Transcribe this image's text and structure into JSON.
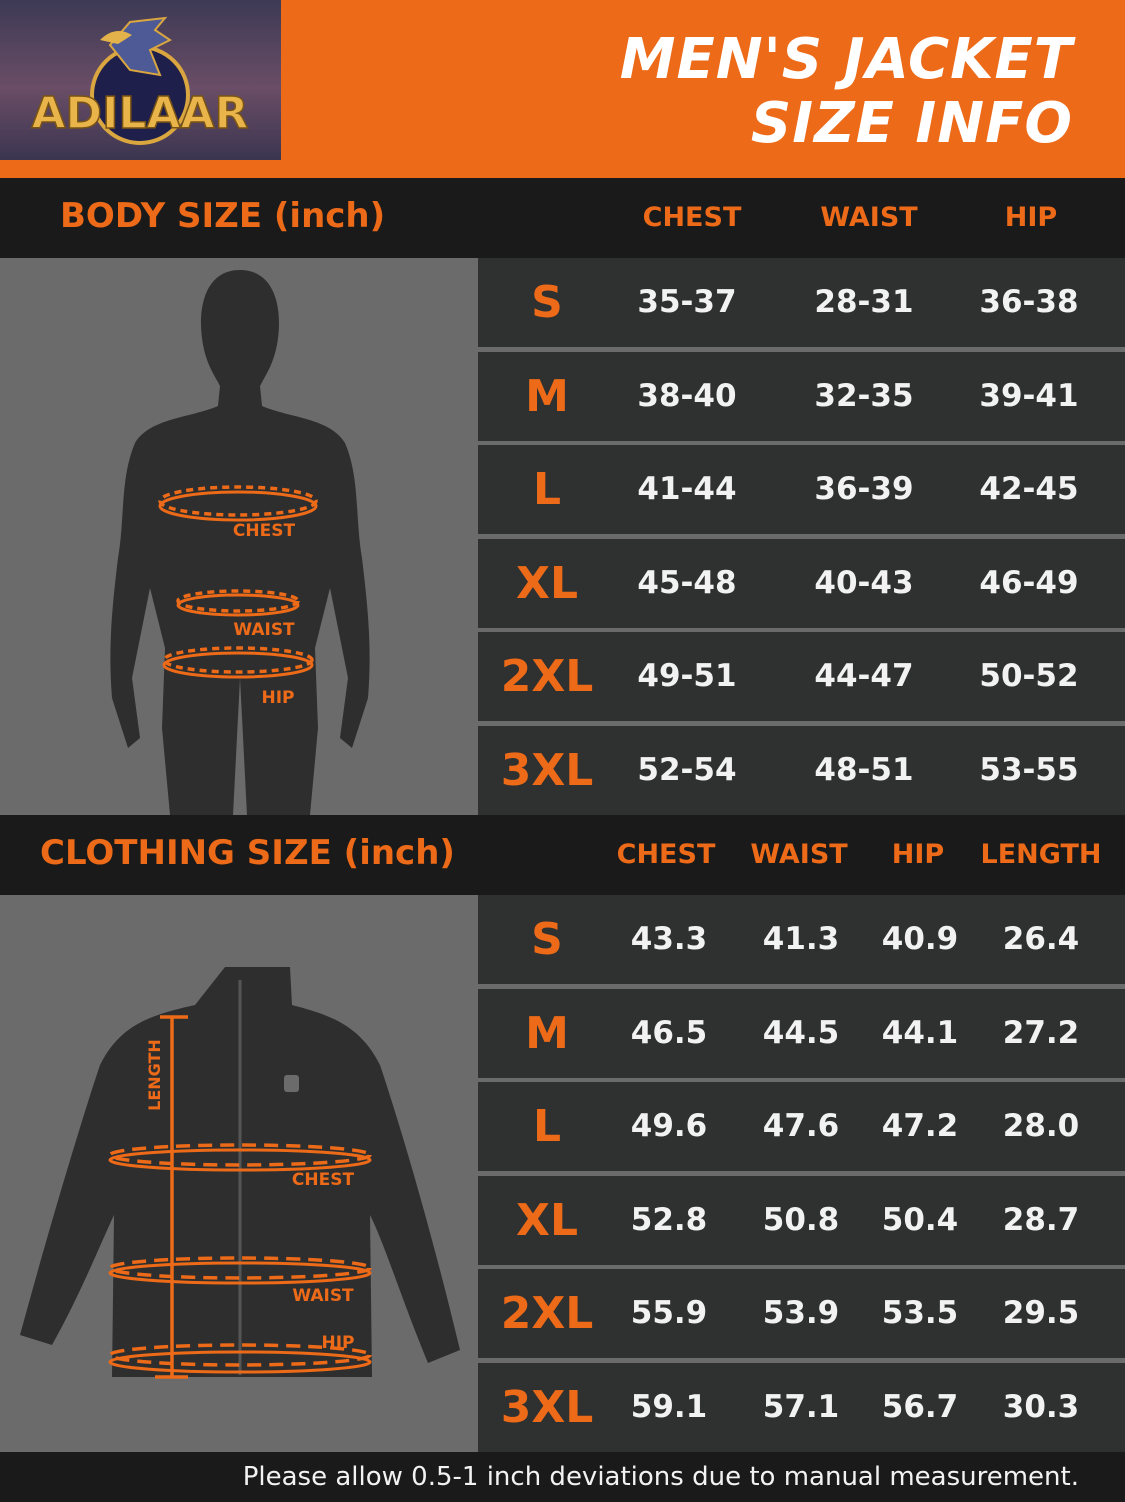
{
  "brand": {
    "logo_text": "ADILAAR"
  },
  "title": {
    "line1": "MEN'S JACKET",
    "line2": "SIZE INFO"
  },
  "colors": {
    "accent": "#ec6a18",
    "header_bg": "#1a1a1a",
    "row_bg": "#2f3030",
    "panel_bg": "#6b6b6b"
  },
  "body_size": {
    "label": "BODY SIZE (inch)",
    "columns": [
      "CHEST",
      "WAIST",
      "HIP"
    ],
    "figure_labels": {
      "chest": "CHEST",
      "waist": "WAIST",
      "hip": "HIP"
    },
    "rows": [
      {
        "size": "S",
        "values": [
          "35-37",
          "28-31",
          "36-38"
        ]
      },
      {
        "size": "M",
        "values": [
          "38-40",
          "32-35",
          "39-41"
        ]
      },
      {
        "size": "L",
        "values": [
          "41-44",
          "36-39",
          "42-45"
        ]
      },
      {
        "size": "XL",
        "values": [
          "45-48",
          "40-43",
          "46-49"
        ]
      },
      {
        "size": "2XL",
        "values": [
          "49-51",
          "44-47",
          "50-52"
        ]
      },
      {
        "size": "3XL",
        "values": [
          "52-54",
          "48-51",
          "53-55"
        ]
      }
    ]
  },
  "clothing_size": {
    "label": "CLOTHING SIZE (inch)",
    "columns": [
      "CHEST",
      "WAIST",
      "HIP",
      "LENGTH"
    ],
    "figure_labels": {
      "length": "LENGTH",
      "chest": "CHEST",
      "waist": "WAIST",
      "hip": "HIP"
    },
    "rows": [
      {
        "size": "S",
        "values": [
          "43.3",
          "41.3",
          "40.9",
          "26.4"
        ]
      },
      {
        "size": "M",
        "values": [
          "46.5",
          "44.5",
          "44.1",
          "27.2"
        ]
      },
      {
        "size": "L",
        "values": [
          "49.6",
          "47.6",
          "47.2",
          "28.0"
        ]
      },
      {
        "size": "XL",
        "values": [
          "52.8",
          "50.8",
          "50.4",
          "28.7"
        ]
      },
      {
        "size": "2XL",
        "values": [
          "55.9",
          "53.9",
          "53.5",
          "29.5"
        ]
      },
      {
        "size": "3XL",
        "values": [
          "59.1",
          "57.1",
          "56.7",
          "30.3"
        ]
      }
    ]
  },
  "footer": {
    "note": "Please allow 0.5-1 inch deviations due to manual measurement."
  }
}
